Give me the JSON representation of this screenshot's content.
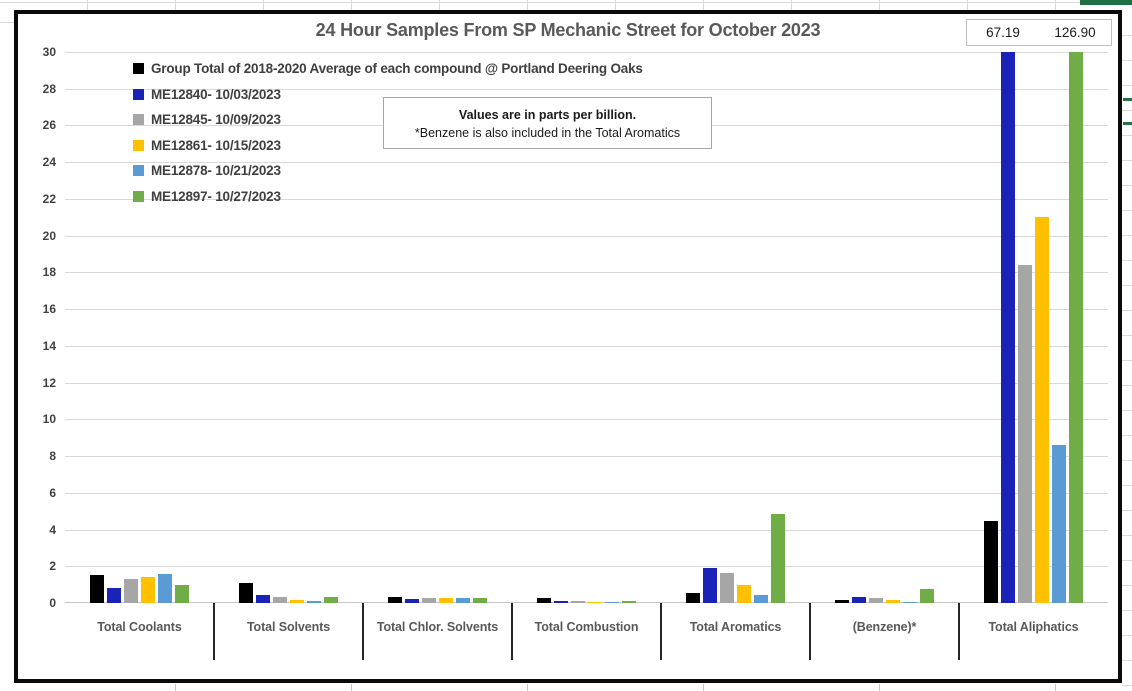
{
  "chart": {
    "note": {
      "line1": "Values are in parts per billion.",
      "line2": "*Benzene is also included in the Total Aromatics"
    },
    "overflow_box": {
      "left_value": "67.19",
      "right_value": "126.90"
    }
  },
  "chart_data": {
    "type": "bar",
    "title": "24 Hour Samples From SP Mechanic Street for October 2023",
    "xlabel": "",
    "ylabel": "",
    "ylim": [
      0,
      30
    ],
    "ytick_step": 2,
    "grid": true,
    "legend_position": "top-left",
    "units": "parts per billion",
    "categories": [
      "Total Coolants",
      "Total Solvents",
      "Total Chlor. Solvents",
      "Total Combustion",
      "Total Aromatics",
      "(Benzene)*",
      "Total Aliphatics"
    ],
    "series": [
      {
        "name": "Group Total of 2018-2020 Average of each compound @ Portland Deering Oaks",
        "color": "#000000",
        "values": [
          1.5,
          1.1,
          0.3,
          0.25,
          0.55,
          0.15,
          4.45
        ]
      },
      {
        "name": "ME12840- 10/03/2023",
        "color": "#1a22b8",
        "values": [
          0.8,
          0.45,
          0.2,
          0.1,
          1.9,
          0.3,
          67.19
        ]
      },
      {
        "name": "ME12845- 10/09/2023",
        "color": "#a6a6a6",
        "values": [
          1.3,
          0.3,
          0.25,
          0.1,
          1.65,
          0.25,
          18.4
        ]
      },
      {
        "name": "ME12861- 10/15/2023",
        "color": "#ffc000",
        "values": [
          1.4,
          0.15,
          0.25,
          0.03,
          1.0,
          0.15,
          21.0
        ]
      },
      {
        "name": "ME12878- 10/21/2023",
        "color": "#5b9bd5",
        "values": [
          1.6,
          0.1,
          0.25,
          0.03,
          0.45,
          0.05,
          8.6
        ]
      },
      {
        "name": "ME12897- 10/27/2023",
        "color": "#70ad47",
        "values": [
          1.0,
          0.35,
          0.25,
          0.1,
          4.85,
          0.75,
          126.9
        ]
      }
    ],
    "clipped_bars": {
      "category": "Total Aliphatics",
      "entries": [
        {
          "series": "ME12840- 10/03/2023",
          "value": 67.19
        },
        {
          "series": "ME12897- 10/27/2023",
          "value": 126.9
        }
      ]
    }
  }
}
